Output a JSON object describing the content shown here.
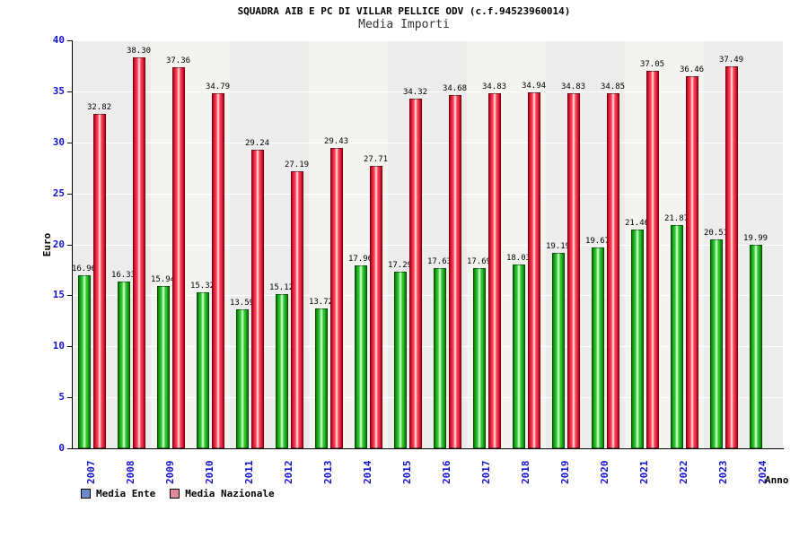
{
  "chart_data": {
    "type": "bar",
    "title": "SQUADRA AIB E PC DI VILLAR PELLICE ODV (c.f.94523960014)",
    "subtitle": "Media Importi",
    "xlabel": "Anno",
    "ylabel": "Euro",
    "ylim": [
      0,
      40
    ],
    "ytick_step": 5,
    "grid": "horizontal-white-on-gray",
    "legend_position": "bottom-left",
    "categories": [
      "2007",
      "2008",
      "2009",
      "2010",
      "2011",
      "2012",
      "2013",
      "2014",
      "2015",
      "2016",
      "2017",
      "2018",
      "2019",
      "2020",
      "2021",
      "2022",
      "2023",
      "2024"
    ],
    "series": [
      {
        "name": "Media Ente",
        "legend_color": "#6b8ac9",
        "bar_dark": "#008000",
        "bar_mid": "#3ed43e",
        "bar_light": "#e8ffe8",
        "values": [
          16.96,
          16.33,
          15.94,
          15.32,
          13.59,
          15.12,
          13.72,
          17.96,
          17.29,
          17.63,
          17.69,
          18.03,
          19.19,
          19.67,
          21.46,
          21.87,
          20.51,
          19.99
        ]
      },
      {
        "name": "Media Nazionale",
        "legend_color": "#e2889b",
        "bar_dark": "#c2001e",
        "bar_mid": "#ff4d5e",
        "bar_light": "#ffecef",
        "values": [
          32.82,
          38.3,
          37.36,
          34.79,
          29.24,
          27.19,
          29.43,
          27.71,
          34.32,
          34.68,
          34.83,
          34.94,
          34.83,
          34.85,
          37.05,
          36.46,
          37.49,
          null
        ]
      }
    ]
  },
  "colors": {
    "plot_background": "#ececec",
    "axis_text_blue": "#1111cc",
    "gridline": "#ffffff",
    "page_background": "#ffffff"
  }
}
